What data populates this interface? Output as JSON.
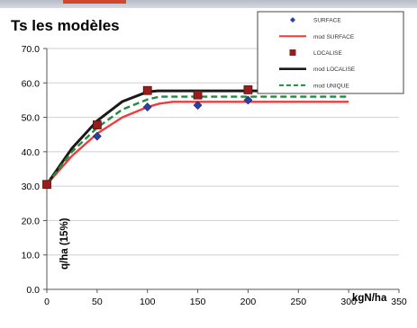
{
  "chart_data": {
    "type": "scatter",
    "title": "Ts les modèles",
    "xlabel": "kgN/ha",
    "ylabel": "q/ha (15%)",
    "xlim": [
      0,
      350
    ],
    "ylim": [
      0,
      70
    ],
    "x_ticks": [
      "0",
      "50",
      "100",
      "150",
      "200",
      "250",
      "300",
      "350"
    ],
    "y_ticks": [
      "0.0",
      "10.0",
      "20.0",
      "30.0",
      "40.0",
      "50.0",
      "60.0",
      "70.0"
    ],
    "grid": "horizontal",
    "legend_position": "top-right",
    "series": [
      {
        "name": "SURFACE",
        "kind": "points",
        "marker": "diamond",
        "color": "#2f3f9e",
        "x": [
          0,
          50,
          100,
          150,
          200
        ],
        "y": [
          30.5,
          44.5,
          53.0,
          53.5,
          55.0
        ]
      },
      {
        "name": "mod SURFACE",
        "kind": "line",
        "dash": "solid",
        "color": "#f03b3b",
        "x": [
          0,
          25,
          50,
          75,
          100,
          112,
          125,
          150,
          200,
          250,
          300
        ],
        "y": [
          30.5,
          38.8,
          45.3,
          50.0,
          53.0,
          54.0,
          54.5,
          54.5,
          54.5,
          54.5,
          54.5
        ]
      },
      {
        "name": "LOCALISE",
        "kind": "points",
        "marker": "square",
        "color": "#9b1c1c",
        "x": [
          0,
          50,
          100,
          150,
          200
        ],
        "y": [
          30.5,
          47.8,
          57.8,
          56.5,
          58.0
        ]
      },
      {
        "name": "mod LOCALISE",
        "kind": "line",
        "dash": "solid",
        "color": "#1a1a1a",
        "x": [
          0,
          25,
          50,
          75,
          100,
          110,
          125,
          150,
          200,
          250,
          300
        ],
        "y": [
          30.5,
          41.0,
          49.0,
          54.6,
          57.4,
          57.7,
          57.7,
          57.7,
          57.7,
          57.7,
          57.7
        ]
      },
      {
        "name": "mod UNIQUE",
        "kind": "line",
        "dash": "dashed",
        "color": "#1e8c3c",
        "x": [
          0,
          25,
          50,
          75,
          100,
          112,
          125,
          150,
          200,
          250,
          300
        ],
        "y": [
          30.5,
          40.0,
          47.0,
          52.3,
          55.2,
          56.0,
          56.0,
          56.0,
          56.0,
          56.0,
          56.0
        ]
      }
    ]
  }
}
